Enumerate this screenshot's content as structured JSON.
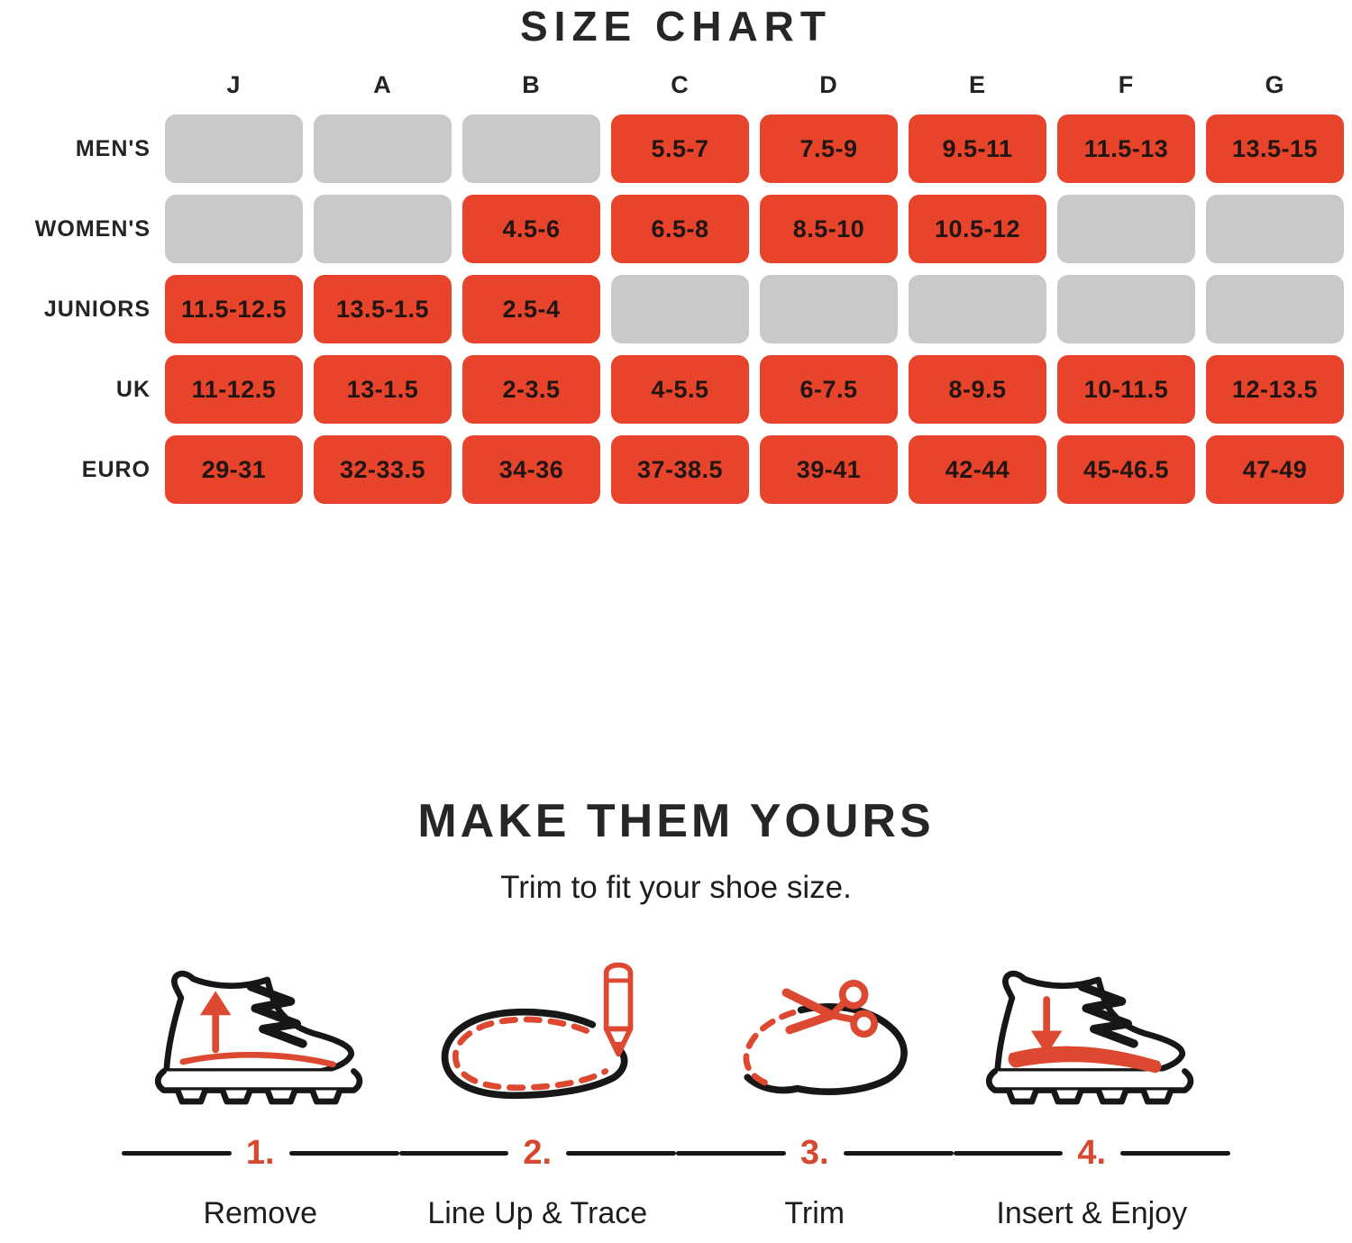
{
  "colors": {
    "accent_red": "#E8432B",
    "illustration_red": "#DD4830",
    "empty_cell_gray": "#C8C9CA",
    "ink": "#171717"
  },
  "size_chart": {
    "title": "SIZE CHART",
    "column_headers": [
      "J",
      "A",
      "B",
      "C",
      "D",
      "E",
      "F",
      "G"
    ],
    "rows": [
      {
        "label": "MEN'S",
        "cells": [
          "",
          "",
          "",
          "5.5-7",
          "7.5-9",
          "9.5-11",
          "11.5-13",
          "13.5-15"
        ]
      },
      {
        "label": "WOMEN'S",
        "cells": [
          "",
          "",
          "4.5-6",
          "6.5-8",
          "8.5-10",
          "10.5-12",
          "",
          ""
        ]
      },
      {
        "label": "JUNIORS",
        "cells": [
          "11.5-12.5",
          "13.5-1.5",
          "2.5-4",
          "",
          "",
          "",
          "",
          ""
        ]
      },
      {
        "label": "UK",
        "cells": [
          "11-12.5",
          "13-1.5",
          "2-3.5",
          "4-5.5",
          "6-7.5",
          "8-9.5",
          "10-11.5",
          "12-13.5"
        ]
      },
      {
        "label": "EURO",
        "cells": [
          "29-31",
          "32-33.5",
          "34-36",
          "37-38.5",
          "39-41",
          "42-44",
          "45-46.5",
          "47-49"
        ]
      }
    ]
  },
  "customize": {
    "title": "MAKE THEM YOURS",
    "subtitle": "Trim to fit your shoe size.",
    "steps": [
      {
        "number": "1.",
        "label": "Remove",
        "icon": "boot-remove-insole-icon"
      },
      {
        "number": "2.",
        "label": "Line Up & Trace",
        "icon": "insole-pencil-trace-icon"
      },
      {
        "number": "3.",
        "label": "Trim",
        "icon": "insole-scissors-trim-icon"
      },
      {
        "number": "4.",
        "label": "Insert & Enjoy",
        "icon": "boot-insert-insole-icon"
      }
    ]
  }
}
